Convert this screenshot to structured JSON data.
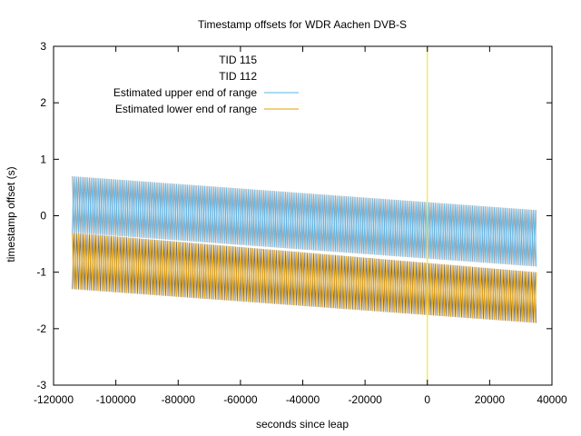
{
  "chart_data": {
    "type": "line",
    "title": "Timestamp offsets for WDR Aachen DVB-S",
    "xlabel": "seconds since leap",
    "ylabel": "timestamp offset (s)",
    "xlim": [
      -120000,
      40000
    ],
    "ylim": [
      -3,
      3
    ],
    "x_ticks": [
      -120000,
      -100000,
      -80000,
      -60000,
      -40000,
      -20000,
      0,
      20000,
      40000
    ],
    "y_ticks": [
      -3,
      -2,
      -1,
      0,
      1,
      2,
      3
    ],
    "grid": false,
    "legend_position": "top-left",
    "leap_marker_x": 0,
    "oscillation_period_seconds": 1000,
    "series": [
      {
        "name": "TID 115",
        "color": "#000000",
        "x_start": -114000,
        "x_end": 35000,
        "upper_bound_start": -0.3,
        "upper_bound_end": -1.0,
        "lower_bound_start": -1.3,
        "lower_bound_end": -1.9
      },
      {
        "name": "TID 112",
        "color": "#555555",
        "x_start": -114000,
        "x_end": 35000,
        "upper_bound_start": 0.7,
        "upper_bound_end": 0.1,
        "lower_bound_start": -0.3,
        "lower_bound_end": -0.9
      },
      {
        "name": "Estimated upper end of range",
        "color": "#56b4e9",
        "x_start": -114000,
        "x_end": 35000,
        "upper_bound_start": 0.7,
        "upper_bound_end": 0.1,
        "lower_bound_start": -0.3,
        "lower_bound_end": -0.9
      },
      {
        "name": "Estimated lower end of range",
        "color": "#e69f00",
        "x_start": -114000,
        "x_end": 35000,
        "upper_bound_start": -0.3,
        "upper_bound_end": -1.0,
        "lower_bound_start": -1.3,
        "lower_bound_end": -1.9
      }
    ],
    "leap_marker_color": "#f0e442"
  }
}
